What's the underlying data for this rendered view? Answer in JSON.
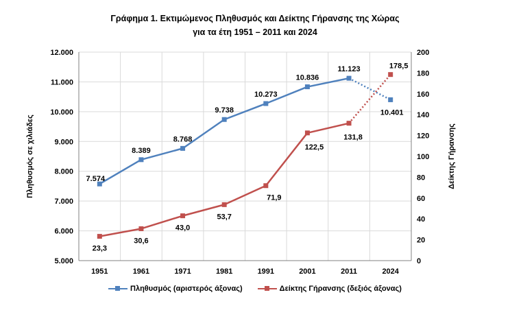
{
  "chart_data": {
    "type": "line",
    "title": "Γράφημα 1. Εκτιμώμενος Πληθυσμός και Δείκτης Γήρανσης της Χώρας",
    "subtitle": "για τα έτη 1951 – 2011 και 2024",
    "categories": [
      "1951",
      "1961",
      "1971",
      "1981",
      "1991",
      "2001",
      "2011",
      "2024"
    ],
    "ylabel": "Πληθυσμός σε χιλιάδες",
    "y2label": "Δείκτης Γήρανσης",
    "ylim": [
      5000,
      12000
    ],
    "y2lim": [
      0,
      200
    ],
    "yticks": [
      "5.000",
      "6.000",
      "7.000",
      "8.000",
      "9.000",
      "10.000",
      "11.000",
      "12.000"
    ],
    "y2ticks": [
      "0",
      "20",
      "40",
      "60",
      "80",
      "100",
      "120",
      "140",
      "160",
      "180",
      "200"
    ],
    "grid": true,
    "legend_position": "bottom",
    "series": [
      {
        "name": "Πληθυσμός (αριστερός άξονας)",
        "axis": "left",
        "color": "#4F81BD",
        "values": [
          7574,
          8389,
          8768,
          9738,
          10273,
          10836,
          11123,
          10401
        ],
        "labels": [
          "7.574",
          "8.389",
          "8.768",
          "9.738",
          "10.273",
          "10.836",
          "11.123",
          "10.401"
        ],
        "dotted_last_segment": true
      },
      {
        "name": "Δείκτης Γήρανσης (δεξιός άξονας)",
        "axis": "right",
        "color": "#C0504D",
        "values": [
          23.3,
          30.6,
          43.0,
          53.7,
          71.9,
          122.5,
          131.8,
          178.5
        ],
        "labels": [
          "23,3",
          "30,6",
          "43,0",
          "53,7",
          "71,9",
          "122,5",
          "131,8",
          "178,5"
        ],
        "dotted_last_segment": true
      }
    ]
  }
}
